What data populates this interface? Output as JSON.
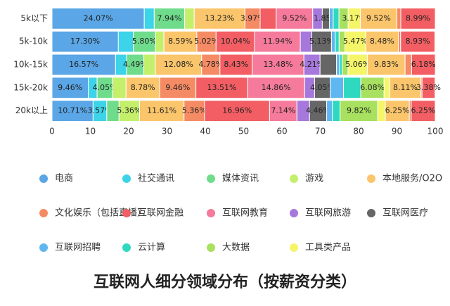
{
  "chart_data": {
    "type": "stacked-bar",
    "orientation": "horizontal",
    "title": "互联网人细分领域分布（按薪资分类）",
    "categories": [
      "5k以下",
      "5k-10k",
      "10k-15k",
      "15k-20k",
      "20k以上"
    ],
    "xlim": [
      0,
      100
    ],
    "xticks": [
      0,
      10,
      20,
      30,
      40,
      50,
      60,
      70,
      80,
      90,
      100
    ],
    "grid": false,
    "series": [
      {
        "name": "电商",
        "color": "#5aa6e6",
        "values": [
          24.07,
          17.3,
          16.57,
          9.46,
          10.71
        ],
        "value_labels": [
          "24.07%",
          "17.30%",
          "16.57%",
          "9.46%",
          "10.71%"
        ]
      },
      {
        "name": "社交通讯",
        "color": "#3dd3e8",
        "values": [
          2.6,
          3.9,
          2.9,
          2.3,
          3.57
        ],
        "value_labels": [
          null,
          null,
          null,
          null,
          "3.57%"
        ]
      },
      {
        "name": "媒体资讯",
        "color": "#6fdc8c",
        "values": [
          7.94,
          5.8,
          4.49,
          4.05,
          3.2
        ],
        "value_labels": [
          "7.94%",
          "5.80%",
          "4.49%",
          "4.05%",
          null
        ]
      },
      {
        "name": "游戏",
        "color": "#c4ef6b",
        "values": [
          2.5,
          2.2,
          3.0,
          3.5,
          5.36
        ],
        "value_labels": [
          null,
          null,
          null,
          null,
          "5.36%"
        ]
      },
      {
        "name": "本地服务/O2O",
        "color": "#fbc56b",
        "values": [
          13.23,
          8.59,
          12.08,
          8.78,
          11.61
        ],
        "value_labels": [
          "13.23%",
          "8.59%",
          "12.08%",
          "8.78%",
          "11.61%"
        ]
      },
      {
        "name": "文化娱乐（包括直播）",
        "color": "#f58b64",
        "values": [
          3.97,
          5.02,
          4.78,
          9.46,
          5.36
        ],
        "value_labels": [
          "3.97%",
          "5.02%",
          "4.78%",
          "9.46%",
          "5.36%"
        ]
      },
      {
        "name": "互联网金融",
        "color": "#f25e63",
        "values": [
          4.2,
          10.04,
          8.43,
          13.51,
          16.96
        ],
        "value_labels": [
          null,
          "10.04%",
          "8.43%",
          "13.51%",
          "16.96%"
        ]
      },
      {
        "name": "互联网教育",
        "color": "#f57a9b",
        "values": [
          9.52,
          11.94,
          13.48,
          14.86,
          7.14
        ],
        "value_labels": [
          "9.52%",
          "11.94%",
          "13.48%",
          "14.86%",
          "7.14%"
        ]
      },
      {
        "name": "互联网旅游",
        "color": "#a678dc",
        "values": [
          2.5,
          3.0,
          4.21,
          2.6,
          3.3
        ],
        "value_labels": [
          null,
          null,
          "4.21%",
          null,
          null
        ]
      },
      {
        "name": "互联网医疗",
        "color": "#666666",
        "values": [
          1.85,
          5.13,
          4.3,
          4.05,
          4.46
        ],
        "value_labels": [
          "1.85%",
          "5.13%",
          null,
          "4.05%",
          "4.46%"
        ]
      },
      {
        "name": "互联网招聘",
        "color": "#5fb7f0",
        "values": [
          1.0,
          1.0,
          0.8,
          3.5,
          1.5
        ],
        "value_labels": [
          null,
          null,
          null,
          null,
          null
        ]
      },
      {
        "name": "云计算",
        "color": "#2ed9c0",
        "values": [
          1.5,
          1.0,
          0.7,
          4.5,
          2.0
        ],
        "value_labels": [
          null,
          null,
          null,
          null,
          null
        ]
      },
      {
        "name": "大数据",
        "color": "#a8e05f",
        "values": [
          2.4,
          1.5,
          1.5,
          6.08,
          9.82
        ],
        "value_labels": [
          null,
          null,
          null,
          "6.08%",
          "9.82%"
        ]
      },
      {
        "name": "工具类产品",
        "color": "#f5f56a",
        "values": [
          3.17,
          5.47,
          5.06,
          1.5,
          2.0
        ],
        "value_labels": [
          "3.17%",
          "5.47%",
          "5.06%",
          null,
          null
        ]
      },
      {
        "color": "#fbc56b",
        "values": [
          9.52,
          8.48,
          9.83,
          8.11,
          6.25
        ],
        "value_labels": [
          "9.52%",
          "8.48%",
          "9.83%",
          "8.11%",
          "6.25%"
        ]
      },
      {
        "color": "#f58b64",
        "values": [
          1.04,
          0.6,
          1.7,
          0.3,
          0.5
        ],
        "value_labels": [
          null,
          null,
          null,
          null,
          null
        ]
      },
      {
        "color": "#f25e63",
        "values": [
          8.99,
          8.93,
          6.18,
          3.38,
          6.25
        ],
        "value_labels": [
          "8.99%",
          "8.93%",
          "6.18%",
          "3.38%",
          "6.25%"
        ]
      }
    ]
  }
}
